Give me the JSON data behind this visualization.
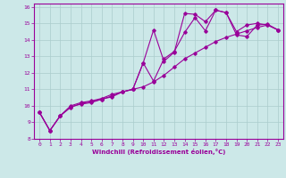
{
  "xlabel": "Windchill (Refroidissement éolien,°C)",
  "bg_color": "#cce8e8",
  "line_color": "#990099",
  "grid_color": "#aacccc",
  "xlim": [
    -0.5,
    23.5
  ],
  "ylim": [
    8,
    16.2
  ],
  "xticks": [
    0,
    1,
    2,
    3,
    4,
    5,
    6,
    7,
    8,
    9,
    10,
    11,
    12,
    13,
    14,
    15,
    16,
    17,
    18,
    19,
    20,
    21,
    22,
    23
  ],
  "yticks": [
    8,
    9,
    10,
    11,
    12,
    13,
    14,
    15,
    16
  ],
  "curve1_x": [
    0,
    1,
    2,
    3,
    4,
    5,
    6,
    7,
    8,
    9,
    10,
    11,
    12,
    13,
    14,
    15,
    16,
    17,
    18,
    19,
    20,
    21,
    22,
    23
  ],
  "curve1_y": [
    9.6,
    8.5,
    9.4,
    10.0,
    10.2,
    10.3,
    10.45,
    10.7,
    10.85,
    11.0,
    11.15,
    11.45,
    11.85,
    12.35,
    12.85,
    13.2,
    13.55,
    13.9,
    14.15,
    14.35,
    14.55,
    14.75,
    14.9,
    14.6
  ],
  "curve2_x": [
    0,
    1,
    2,
    3,
    4,
    5,
    6,
    7,
    8,
    9,
    10,
    11,
    12,
    13,
    14,
    15,
    16,
    17,
    18,
    19,
    20,
    21,
    22,
    23
  ],
  "curve2_y": [
    9.6,
    8.5,
    9.4,
    9.9,
    10.15,
    10.25,
    10.4,
    10.6,
    10.85,
    11.0,
    12.6,
    14.6,
    12.7,
    13.25,
    15.6,
    15.55,
    15.1,
    15.8,
    15.65,
    14.5,
    14.9,
    15.0,
    14.9,
    14.6
  ],
  "curve3_x": [
    0,
    1,
    2,
    3,
    4,
    5,
    6,
    7,
    8,
    9,
    10,
    11,
    12,
    13,
    14,
    15,
    16,
    17,
    18,
    19,
    20,
    21,
    22,
    23
  ],
  "curve3_y": [
    9.6,
    8.5,
    9.4,
    9.95,
    10.1,
    10.2,
    10.4,
    10.55,
    10.85,
    11.0,
    12.6,
    11.5,
    12.85,
    13.3,
    14.45,
    15.35,
    14.55,
    15.8,
    15.65,
    14.3,
    14.2,
    14.9,
    14.95,
    14.6
  ]
}
